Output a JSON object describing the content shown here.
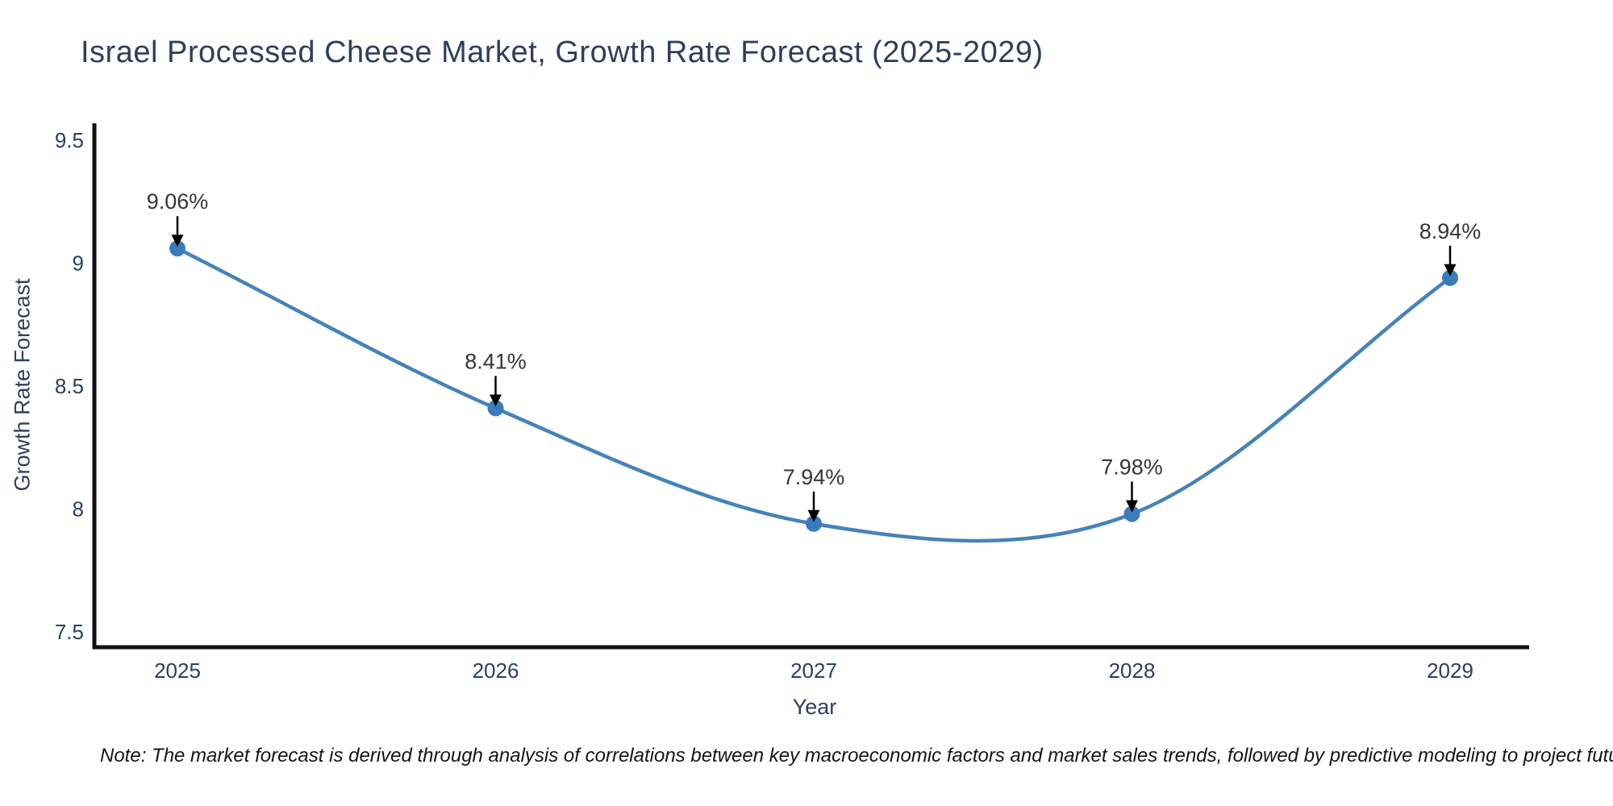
{
  "page": {
    "note": "Note: The market forecast is derived through analysis of correlations between key macroeconomic factors and market sales trends, followed by predictive modeling to project future sales"
  },
  "chart_data": {
    "type": "line",
    "title": "Israel Processed Cheese Market, Growth Rate Forecast (2025-2029)",
    "x": [
      "2025",
      "2026",
      "2027",
      "2028",
      "2029"
    ],
    "series": [
      {
        "name": "Growth Rate Forecast",
        "values": [
          9.06,
          8.41,
          7.94,
          7.98,
          8.94
        ],
        "point_labels": [
          "9.06%",
          "8.41%",
          "7.94%",
          "7.98%",
          "8.94%"
        ]
      }
    ],
    "xlabel": "Year",
    "ylabel": "Growth Rate Forecast",
    "ylim": [
      7.5,
      9.5
    ],
    "yticks": [
      "9.5",
      "9",
      "8.5",
      "8",
      "7.5"
    ],
    "ytick_values": [
      9.5,
      9,
      8.5,
      8,
      7.5
    ],
    "grid": false,
    "legend_position": "none",
    "line_smoothing": true,
    "annotation_arrows": true,
    "colors": {
      "line": "#4583b8",
      "marker": "#3a7cba",
      "axis": "#111111",
      "tick_label": "#2e3f5c",
      "annotation_text": "#363636",
      "arrow": "#000000",
      "background": "#ffffff"
    }
  }
}
